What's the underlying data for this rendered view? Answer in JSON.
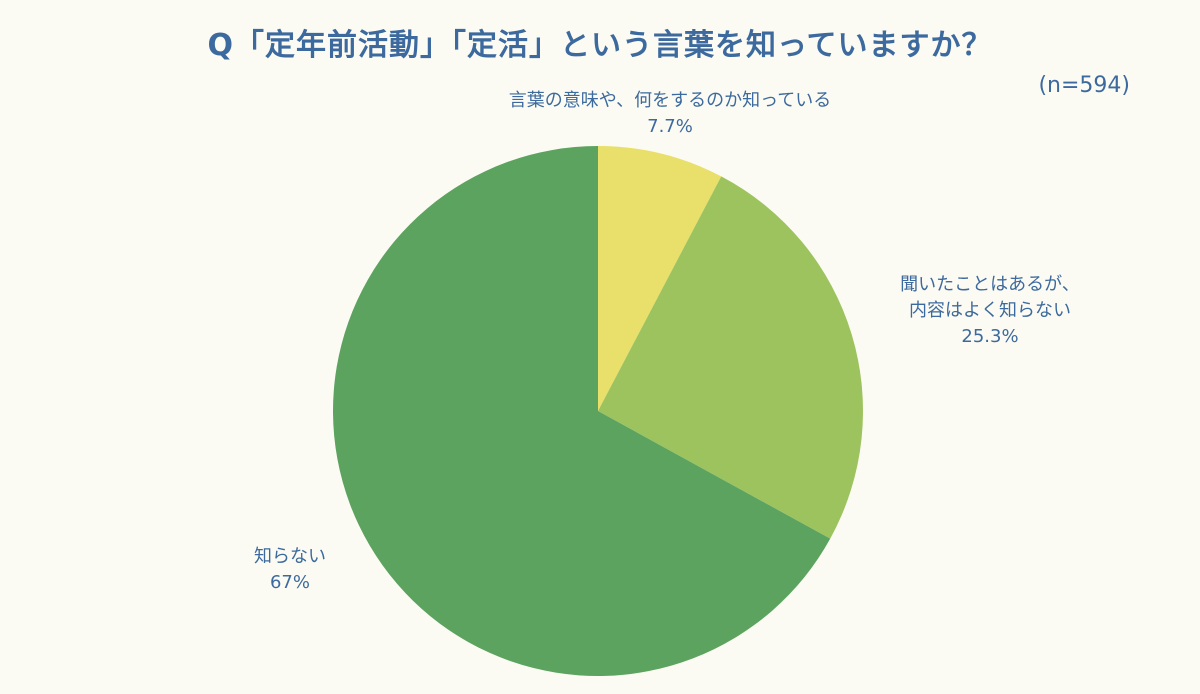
{
  "title": "Q「定年前活動」「定活」という言葉を知っていますか？",
  "sample_size": "(n=594)",
  "chart_data": {
    "type": "pie",
    "title": "Q「定年前活動」「定活」という言葉を知っていますか？",
    "slices": [
      {
        "label": "言葉の意味や、何をするのか知っている",
        "value": 7.7,
        "value_label": "7.7%",
        "color": "#e8e06a"
      },
      {
        "label": "聞いたことはあるが、内容はよく知らない",
        "value": 25.3,
        "value_label": "25.3%",
        "color": "#9dc35f"
      },
      {
        "label": "知らない",
        "value": 67,
        "value_label": "67%",
        "color": "#5ca35f"
      }
    ]
  },
  "labels": {
    "slice0_line1": "言葉の意味や、何をするのか知っている",
    "slice0_value": "7.7%",
    "slice1_line1": "聞いたことはあるが、",
    "slice1_line2": "内容はよく知らない",
    "slice1_value": "25.3%",
    "slice2_line1": "知らない",
    "slice2_value": "67%"
  }
}
